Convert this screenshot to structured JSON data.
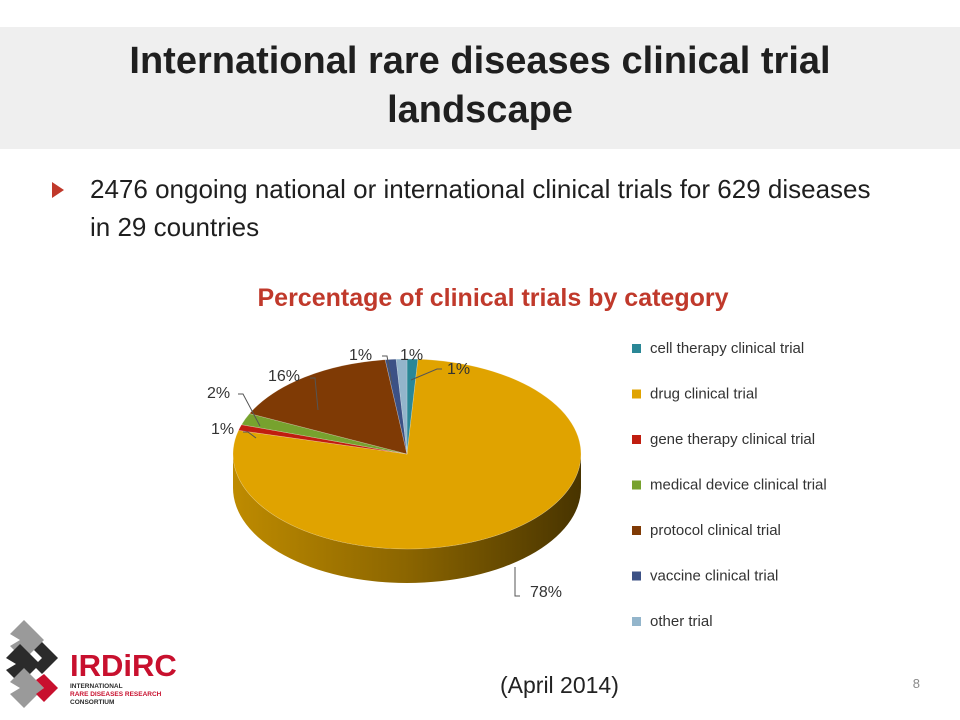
{
  "slide": {
    "title": "International rare diseases clinical trial landscape",
    "bullet": "2476 ongoing national or international clinical trials for 629 diseases in 29 countries",
    "date_note": "(April 2014)",
    "slide_number": "8"
  },
  "logo": {
    "name": "IRDiRC",
    "line1": "INTERNATIONAL",
    "line2": "RARE DISEASES RESEARCH",
    "line3": "CONSORTIUM",
    "colors": {
      "red": "#c8102e",
      "dark": "#2b2b2b",
      "grey": "#9a9a9a"
    }
  },
  "chart_data": {
    "type": "pie",
    "title": "Percentage of clinical trials by category",
    "title_color": "#c0392b",
    "style": "3d",
    "legend_position": "right",
    "slices": [
      {
        "label": "cell therapy clinical trial",
        "value": 1,
        "display": "1%",
        "color": "#2a8796"
      },
      {
        "label": "drug clinical trial",
        "value": 78,
        "display": "78%",
        "color": "#e0a300"
      },
      {
        "label": "gene therapy clinical trial",
        "value": 1,
        "display": "1%",
        "color": "#c01d0f"
      },
      {
        "label": "medical device clinical trial",
        "value": 2,
        "display": "2%",
        "color": "#77a22e"
      },
      {
        "label": "protocol clinical trial",
        "value": 16,
        "display": "16%",
        "color": "#7f3a05"
      },
      {
        "label": "vaccine clinical trial",
        "value": 1,
        "display": "1%",
        "color": "#3c5185"
      },
      {
        "label": "other trial",
        "value": 1,
        "display": "1%",
        "color": "#93b5cb"
      }
    ]
  }
}
